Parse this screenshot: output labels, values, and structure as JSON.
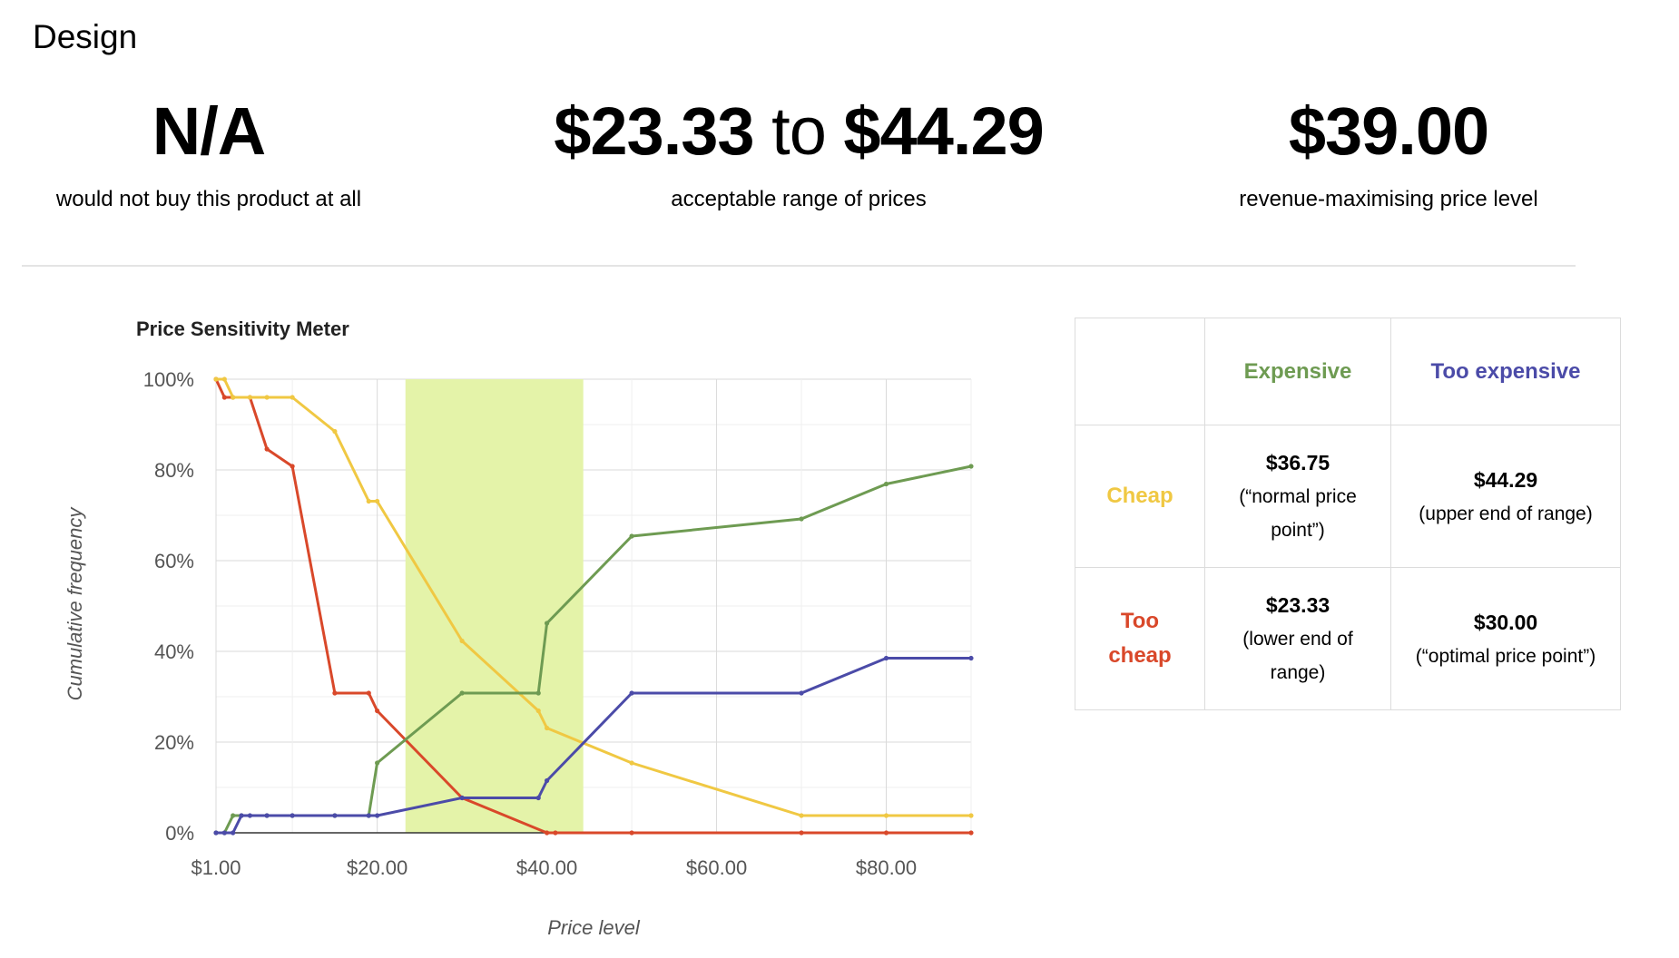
{
  "section_title": "Design",
  "stats": {
    "na": {
      "value": "N/A",
      "caption": "would not buy this product at all"
    },
    "range": {
      "low": "$23.33",
      "to": "to",
      "high": "$44.29",
      "caption": "acceptable range of prices"
    },
    "revenue": {
      "value": "$39.00",
      "caption": "revenue-maximising price level"
    }
  },
  "table": {
    "col_expensive": "Expensive",
    "col_too_expensive": "Too expensive",
    "row_cheap": "Cheap",
    "row_too_cheap": "Too cheap",
    "cheap_expensive": {
      "value": "$36.75",
      "note": "(“normal price point”)"
    },
    "cheap_too_expensive": {
      "value": "$44.29",
      "note": "(upper end of range)"
    },
    "too_cheap_expensive": {
      "value": "$23.33",
      "note": "(lower end of range)"
    },
    "too_cheap_too_expensive": {
      "value": "$30.00",
      "note": "(“optimal price point”)"
    },
    "colors": {
      "expensive": "#6e9b52",
      "too_expensive": "#4b4ba8",
      "cheap": "#f0c843",
      "too_cheap": "#d9482a"
    }
  },
  "chart_data": {
    "type": "line",
    "title": "Price Sensitivity Meter",
    "xlabel": "Price level",
    "ylabel": "Cumulative frequency",
    "xlim": [
      1,
      90
    ],
    "ylim": [
      0,
      100
    ],
    "x_ticks": [
      1,
      20,
      40,
      60,
      80
    ],
    "x_tick_labels": [
      "$1.00",
      "$20.00",
      "$40.00",
      "$60.00",
      "$80.00"
    ],
    "y_ticks": [
      0,
      20,
      40,
      60,
      80,
      100
    ],
    "y_tick_labels": [
      "0%",
      "20%",
      "40%",
      "60%",
      "80%",
      "100%"
    ],
    "grid": true,
    "shaded_range": {
      "from": 23.33,
      "to": 44.29,
      "color": "#e4f3a9"
    },
    "series": [
      {
        "color": "#d9482a",
        "points": [
          [
            1,
            100
          ],
          [
            2,
            96
          ],
          [
            3,
            96
          ],
          [
            5,
            96
          ],
          [
            7,
            84.6
          ],
          [
            10,
            80.8
          ],
          [
            15,
            30.8
          ],
          [
            19,
            30.8
          ],
          [
            20,
            26.9
          ],
          [
            30,
            7.7
          ],
          [
            40,
            0
          ],
          [
            41,
            0
          ],
          [
            50,
            0
          ],
          [
            70,
            0
          ],
          [
            80,
            0
          ],
          [
            90,
            0
          ]
        ]
      },
      {
        "color": "#f0c843",
        "points": [
          [
            1,
            100
          ],
          [
            2,
            100
          ],
          [
            3,
            96
          ],
          [
            5,
            96
          ],
          [
            7,
            96
          ],
          [
            10,
            96
          ],
          [
            15,
            88.5
          ],
          [
            19,
            73.1
          ],
          [
            20,
            73.1
          ],
          [
            30,
            42.3
          ],
          [
            39,
            26.9
          ],
          [
            40,
            23.1
          ],
          [
            50,
            15.4
          ],
          [
            70,
            3.8
          ],
          [
            80,
            3.8
          ],
          [
            90,
            3.8
          ]
        ]
      },
      {
        "color": "#6e9b52",
        "points": [
          [
            1,
            0
          ],
          [
            2,
            0
          ],
          [
            3,
            3.8
          ],
          [
            4,
            3.8
          ],
          [
            7,
            3.8
          ],
          [
            10,
            3.8
          ],
          [
            15,
            3.8
          ],
          [
            19,
            3.8
          ],
          [
            20,
            15.4
          ],
          [
            30,
            30.8
          ],
          [
            39,
            30.8
          ],
          [
            40,
            46.2
          ],
          [
            50,
            65.4
          ],
          [
            70,
            69.2
          ],
          [
            80,
            76.9
          ],
          [
            90,
            80.8
          ]
        ]
      },
      {
        "color": "#4b4ba8",
        "points": [
          [
            1,
            0
          ],
          [
            2,
            0
          ],
          [
            3,
            0
          ],
          [
            4,
            3.8
          ],
          [
            5,
            3.8
          ],
          [
            7,
            3.8
          ],
          [
            10,
            3.8
          ],
          [
            15,
            3.8
          ],
          [
            19,
            3.8
          ],
          [
            20,
            3.8
          ],
          [
            30,
            7.7
          ],
          [
            39,
            7.7
          ],
          [
            40,
            11.5
          ],
          [
            50,
            30.8
          ],
          [
            70,
            30.8
          ],
          [
            80,
            38.5
          ],
          [
            90,
            38.5
          ]
        ]
      }
    ]
  }
}
